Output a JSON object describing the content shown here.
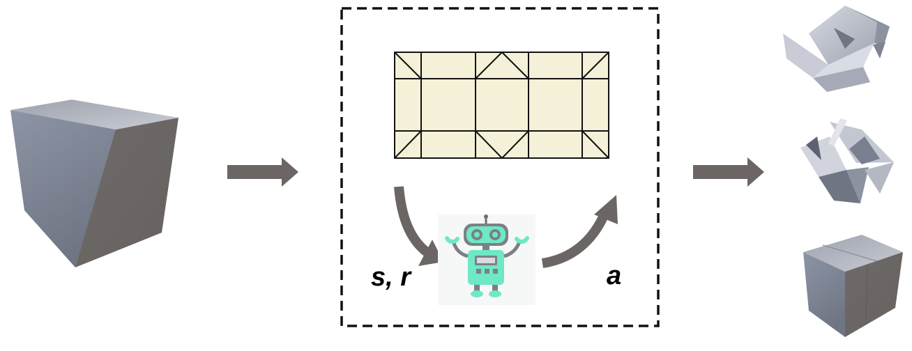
{
  "labels": {
    "state_reward": "s, r",
    "action": "a"
  },
  "colors": {
    "arrow": "#6b6563",
    "crease_paper": "#f4f1d8",
    "crease_line": "#111111",
    "box_frame": "#111111",
    "cube_light": "#b9bdc8",
    "cube_dark": "#6f6a69",
    "robot_body": "#6ee8c5",
    "robot_face": "#7c8086"
  },
  "icons": {
    "input": "cube-icon",
    "env": "crease-pattern-icon",
    "agent": "robot-icon",
    "outputs": [
      "partially-folded-box-icon",
      "mostly-folded-box-icon",
      "folded-cube-icon"
    ]
  }
}
